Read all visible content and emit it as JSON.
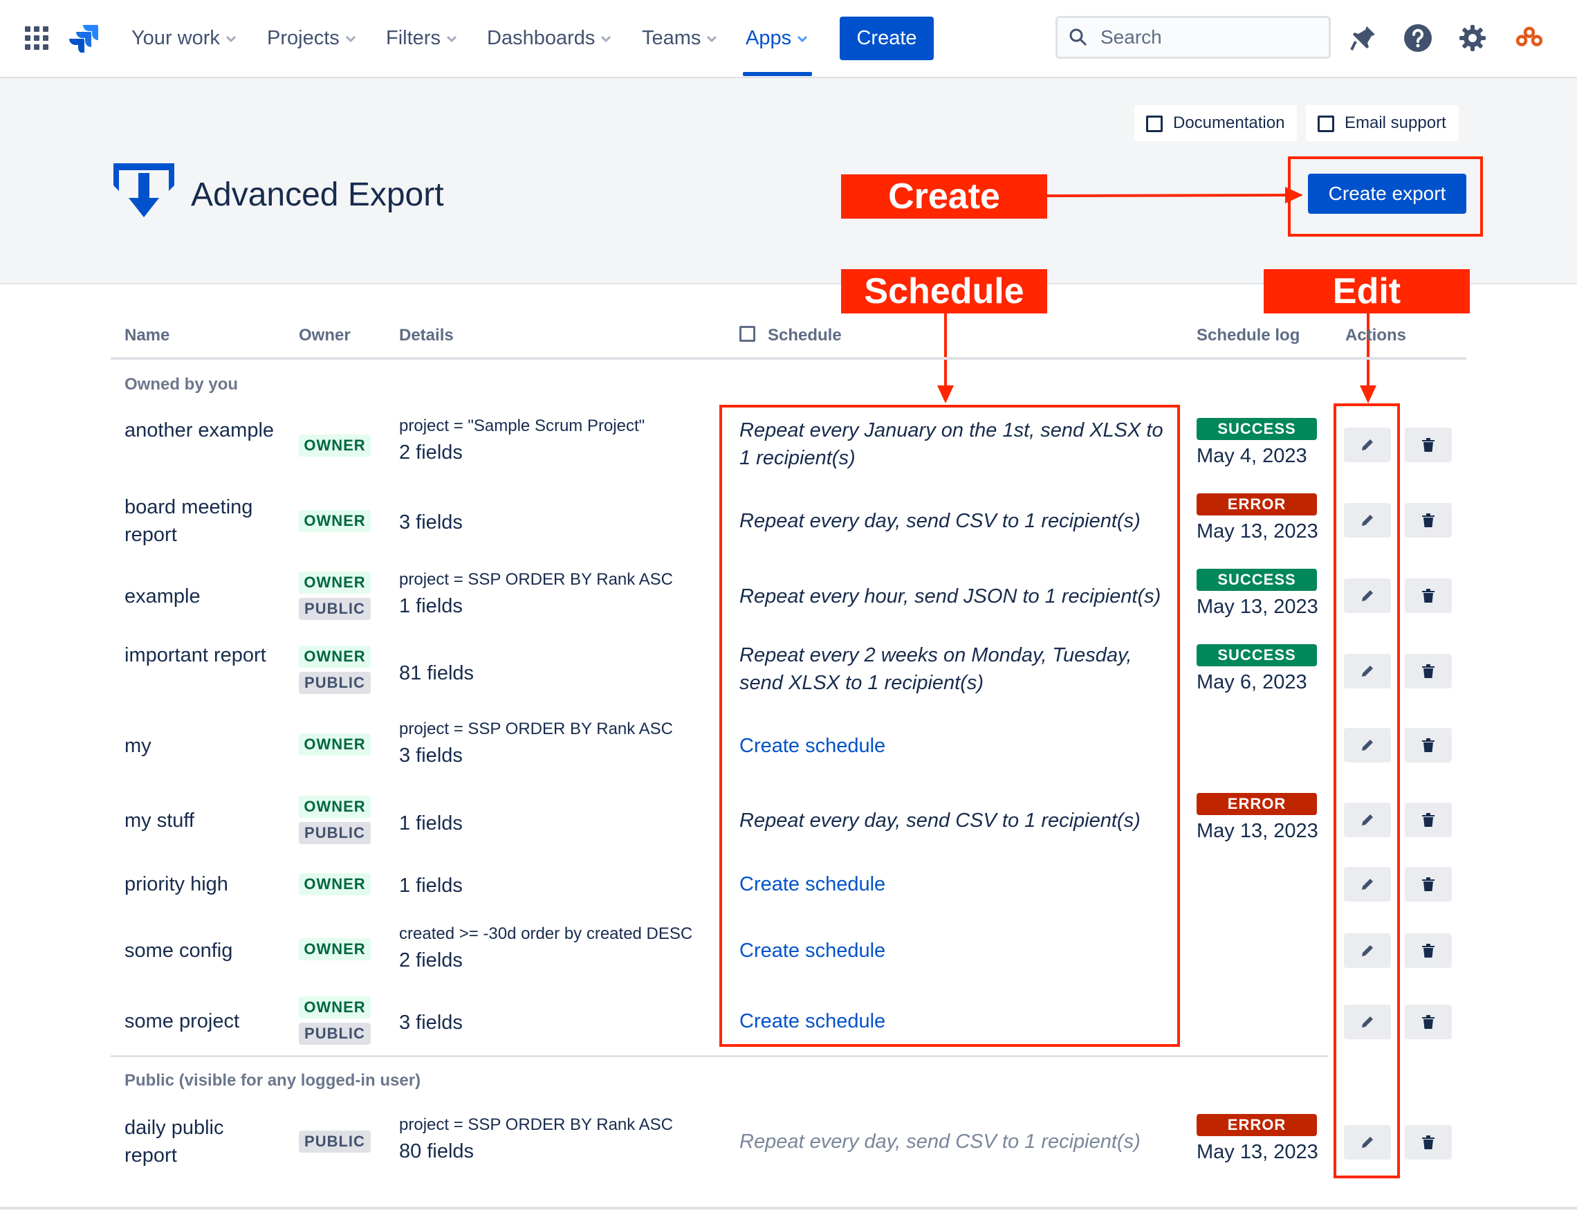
{
  "nav": {
    "items": [
      {
        "label": "Your work"
      },
      {
        "label": "Projects"
      },
      {
        "label": "Filters"
      },
      {
        "label": "Dashboards"
      },
      {
        "label": "Teams"
      },
      {
        "label": "Apps",
        "active": true
      }
    ],
    "create_label": "Create",
    "search_placeholder": "Search",
    "icons": [
      "app-switcher-icon",
      "jira-logo-icon",
      "notifications-icon",
      "help-icon",
      "settings-icon",
      "profile-avatar-icon"
    ]
  },
  "header": {
    "documentation_label": "Documentation",
    "email_support_label": "Email support",
    "app_title": "Advanced Export",
    "create_export_label": "Create export"
  },
  "annotations": {
    "create": "Create",
    "schedule": "Schedule",
    "edit": "Edit",
    "color": "#ff2600"
  },
  "table": {
    "columns": {
      "name": "Name",
      "owner": "Owner",
      "details": "Details",
      "schedule": "Schedule",
      "schedule_log": "Schedule log",
      "actions": "Actions"
    },
    "groups": [
      {
        "title": "Owned by you",
        "rows": [
          {
            "name": "another example",
            "badges": [
              "OWNER"
            ],
            "jql": "project = \"Sample Scrum Project\"",
            "fields": "2 fields",
            "schedule": "Repeat every January on the 1st, send XLSX to 1 recipient(s)",
            "log_status": "SUCCESS",
            "log_date": "May 4, 2023"
          },
          {
            "name": "board meeting report",
            "badges": [
              "OWNER"
            ],
            "jql": "",
            "fields": "3 fields",
            "schedule": "Repeat every day, send CSV to 1 recipient(s)",
            "log_status": "ERROR",
            "log_date": "May 13, 2023"
          },
          {
            "name": "example",
            "badges": [
              "OWNER",
              "PUBLIC"
            ],
            "jql": "project = SSP ORDER BY Rank ASC",
            "fields": "1 fields",
            "schedule": "Repeat every hour, send JSON to 1 recipient(s)",
            "log_status": "SUCCESS",
            "log_date": "May 13, 2023"
          },
          {
            "name": "important report",
            "badges": [
              "OWNER",
              "PUBLIC"
            ],
            "jql": "",
            "fields": "81 fields",
            "schedule": "Repeat every 2 weeks on Monday, Tuesday, send XLSX to 1 recipient(s)",
            "log_status": "SUCCESS",
            "log_date": "May 6, 2023"
          },
          {
            "name": "my",
            "badges": [
              "OWNER"
            ],
            "jql": "project = SSP ORDER BY Rank ASC",
            "fields": "3 fields",
            "schedule_link": "Create schedule",
            "log_status": "",
            "log_date": ""
          },
          {
            "name": "my stuff",
            "badges": [
              "OWNER",
              "PUBLIC"
            ],
            "jql": "",
            "fields": "1 fields",
            "schedule": "Repeat every day, send CSV to 1 recipient(s)",
            "log_status": "ERROR",
            "log_date": "May 13, 2023"
          },
          {
            "name": "priority high",
            "badges": [
              "OWNER"
            ],
            "jql": "",
            "fields": "1 fields",
            "schedule_link": "Create schedule",
            "log_status": "",
            "log_date": ""
          },
          {
            "name": "some config",
            "badges": [
              "OWNER"
            ],
            "jql": "created >= -30d order by created DESC",
            "fields": "2 fields",
            "schedule_link": "Create schedule",
            "log_status": "",
            "log_date": ""
          },
          {
            "name": "some project",
            "badges": [
              "OWNER",
              "PUBLIC"
            ],
            "jql": "",
            "fields": "3 fields",
            "schedule_link": "Create schedule",
            "log_status": "",
            "log_date": ""
          }
        ]
      },
      {
        "title": "Public (visible for any logged-in user)",
        "rows": [
          {
            "name": "daily public report",
            "badges": [
              "PUBLIC"
            ],
            "jql": "project = SSP ORDER BY Rank ASC",
            "fields": "80 fields",
            "schedule": "Repeat every day, send CSV to 1 recipient(s)",
            "schedule_muted": true,
            "log_status": "ERROR",
            "log_date": "May 13, 2023"
          }
        ]
      }
    ]
  },
  "colors": {
    "brand_blue": "#0052cc",
    "success": "#00875a",
    "error": "#bf2600",
    "owner_bg": "#e3fcef",
    "public_bg": "#dfe1e6"
  }
}
